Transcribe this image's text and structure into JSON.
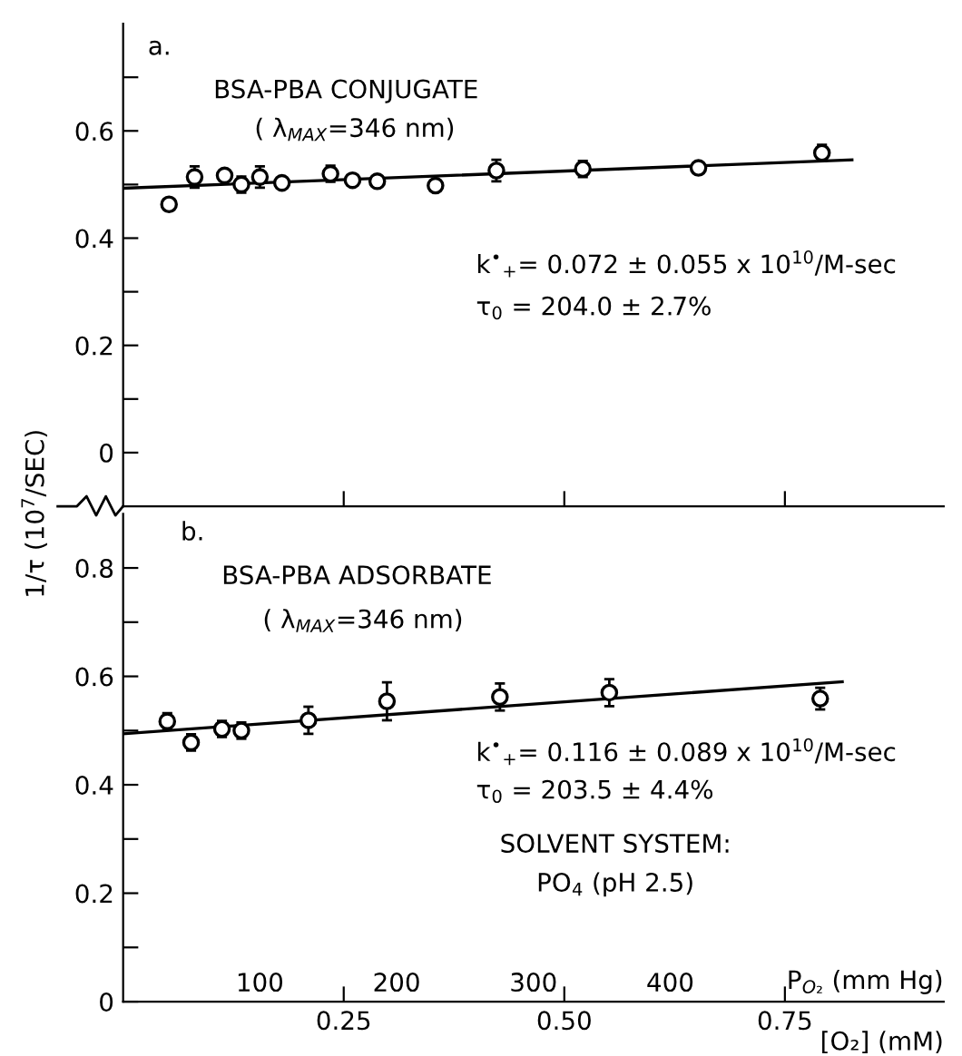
{
  "chart_data": [
    {
      "type": "scatter",
      "xlim": [
        0,
        0.93
      ],
      "ylim": [
        -0.1,
        0.8
      ],
      "xticks": [
        {
          "value": 0.25,
          "label": null
        },
        {
          "value": 0.5,
          "label": null
        },
        {
          "value": 0.75,
          "label": null
        }
      ],
      "yticks": [
        0,
        {
          "value": 0.1,
          "label": null
        },
        0.2,
        {
          "value": 0.3,
          "label": null
        },
        0.4,
        {
          "value": 0.5,
          "label": null
        },
        0.6,
        {
          "value": 0.7,
          "label": null
        }
      ],
      "tick_labels": "y",
      "annotations": [
        "a.",
        "BSA-PBA CONJUGATE",
        "( λ$_{MAX}$=346 nm)",
        "k$^{•}$$_{+}$= 0.072 ± 0.055 x 10$^{10}$/M-sec",
        "τ$_{0}$ = 204.0 ± 2.7%"
      ],
      "series": [
        {
          "marker": "circle",
          "color": "#000000",
          "x": [
            0.052,
            0.081,
            0.115,
            0.134,
            0.155,
            0.18,
            0.235,
            0.26,
            0.288,
            0.354,
            0.423,
            0.521,
            0.652,
            0.792
          ],
          "values": [
            0.463,
            0.514,
            0.517,
            0.5,
            0.514,
            0.503,
            0.52,
            0.508,
            0.506,
            0.498,
            0.526,
            0.529,
            0.531,
            0.559
          ],
          "errors": [
            null,
            0.02,
            0.01,
            0.015,
            0.02,
            0.01,
            0.015,
            0.01,
            0.01,
            0.01,
            0.02,
            0.015,
            0.01,
            0.015
          ]
        },
        {
          "type": "line",
          "color": "#000000",
          "x": [
            0,
            0.826
          ],
          "values": [
            0.493,
            0.546
          ]
        }
      ]
    },
    {
      "type": "scatter",
      "xlim": [
        0,
        0.93
      ],
      "ylim": [
        0,
        0.9
      ],
      "xticks": [
        {
          "value": 0.25,
          "label": "0.25"
        },
        {
          "value": 0.5,
          "label": "0.50"
        },
        {
          "value": 0.75,
          "label": "0.75"
        }
      ],
      "yticks": [
        0,
        {
          "value": 0.1,
          "label": null
        },
        0.2,
        {
          "value": 0.3,
          "label": null
        },
        0.4,
        {
          "value": 0.5,
          "label": null
        },
        0.6,
        {
          "value": 0.7,
          "label": null
        },
        0.8
      ],
      "x2lim": [
        0,
        600
      ],
      "x2ticks": [
        100,
        200,
        300,
        400
      ],
      "xlabel": "[O₂] (mM)",
      "x2label": "P$_{O₂}$ (mm Hg)",
      "ylabel": "1/τ (10$^{7}$/SEC)",
      "annotations": [
        "b.",
        "BSA-PBA ADSORBATE",
        "( λ$_{MAX}$=346 nm)",
        "k$^{•}$$_{+}$= 0.116 ± 0.089 x 10$^{10}$/M-sec",
        "τ$_{0}$ = 203.5 ± 4.4%",
        "SOLVENT SYSTEM:",
        "PO$_{4}$ (pH 2.5)"
      ],
      "series": [
        {
          "marker": "circle",
          "color": "#000000",
          "x": [
            0.05,
            0.077,
            0.112,
            0.134,
            0.21,
            0.299,
            0.427,
            0.551,
            0.79
          ],
          "values": [
            0.517,
            0.478,
            0.503,
            0.5,
            0.519,
            0.554,
            0.562,
            0.57,
            0.559
          ],
          "errors": [
            0.015,
            0.015,
            0.015,
            0.015,
            0.025,
            0.035,
            0.025,
            0.025,
            0.02
          ]
        },
        {
          "type": "line",
          "color": "#000000",
          "x": [
            0,
            0.815
          ],
          "values": [
            0.494,
            0.59
          ]
        }
      ]
    }
  ]
}
